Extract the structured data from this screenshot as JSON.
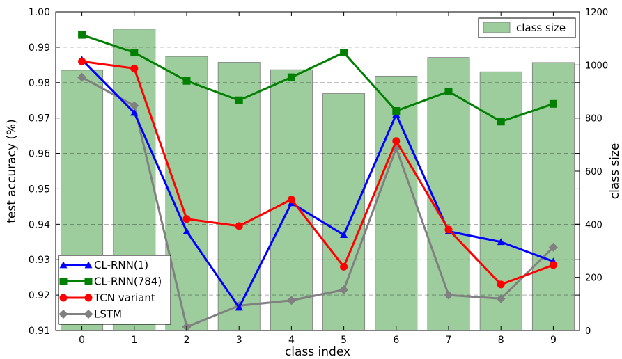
{
  "chart_data": {
    "type": "bar+line",
    "xlabel": "class index",
    "ylabel_left": "test accuracy (%)",
    "ylabel_right": "class size",
    "x": [
      0,
      1,
      2,
      3,
      4,
      5,
      6,
      7,
      8,
      9
    ],
    "x_ticks": [
      "0",
      "1",
      "2",
      "3",
      "4",
      "5",
      "6",
      "7",
      "8",
      "9"
    ],
    "ylim_left": [
      0.91,
      1.0
    ],
    "yticks_left": [
      "0.91",
      "0.92",
      "0.93",
      "0.94",
      "0.95",
      "0.96",
      "0.97",
      "0.98",
      "0.99",
      "1.00"
    ],
    "ylim_right": [
      0,
      1200
    ],
    "yticks_right": [
      "0",
      "200",
      "400",
      "600",
      "800",
      "1000",
      "1200"
    ],
    "bars": {
      "name": "class size",
      "color": "#9dcc9d",
      "values": [
        980,
        1135,
        1032,
        1010,
        982,
        892,
        958,
        1028,
        974,
        1009
      ]
    },
    "series": [
      {
        "name": "CL-RNN(1)",
        "color": "#0000ff",
        "marker": "triangle",
        "values": [
          0.9865,
          0.9715,
          0.938,
          0.9165,
          0.946,
          0.937,
          0.971,
          0.938,
          0.935,
          0.9295
        ]
      },
      {
        "name": "CL-RNN(784)",
        "color": "#008000",
        "marker": "square",
        "values": [
          0.9935,
          0.9885,
          0.9805,
          0.975,
          0.9815,
          0.9885,
          0.972,
          0.9775,
          0.969,
          0.974
        ]
      },
      {
        "name": "TCN variant",
        "color": "#ff0000",
        "marker": "circle",
        "values": [
          0.986,
          0.984,
          0.9415,
          0.9395,
          0.947,
          0.928,
          0.9635,
          0.9385,
          0.923,
          0.9285
        ]
      },
      {
        "name": "LSTM",
        "color": "#808080",
        "marker": "diamond",
        "values": [
          0.9815,
          0.9735,
          0.911,
          0.917,
          0.9185,
          0.9215,
          0.9615,
          0.92,
          0.919,
          0.9335
        ]
      }
    ],
    "grid": "horizontal dashed",
    "legend_lines_position": "bottom-left",
    "legend_bars_position": "top-right"
  }
}
